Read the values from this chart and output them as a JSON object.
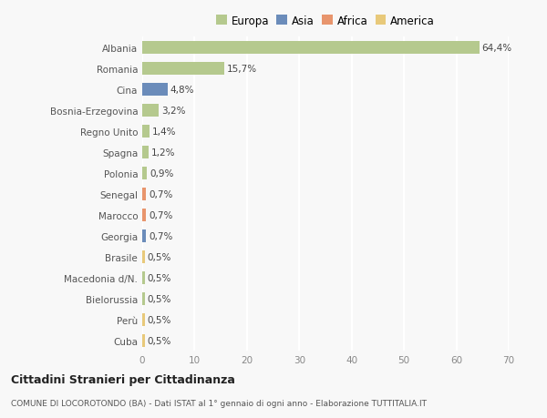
{
  "categories": [
    "Albania",
    "Romania",
    "Cina",
    "Bosnia-Erzegovina",
    "Regno Unito",
    "Spagna",
    "Polonia",
    "Senegal",
    "Marocco",
    "Georgia",
    "Brasile",
    "Macedonia d/N.",
    "Bielorussia",
    "Perù",
    "Cuba"
  ],
  "values": [
    64.4,
    15.7,
    4.8,
    3.2,
    1.4,
    1.2,
    0.9,
    0.7,
    0.7,
    0.7,
    0.5,
    0.5,
    0.5,
    0.5,
    0.5
  ],
  "labels": [
    "64,4%",
    "15,7%",
    "4,8%",
    "3,2%",
    "1,4%",
    "1,2%",
    "0,9%",
    "0,7%",
    "0,7%",
    "0,7%",
    "0,5%",
    "0,5%",
    "0,5%",
    "0,5%",
    "0,5%"
  ],
  "colors": [
    "#b5c98e",
    "#b5c98e",
    "#6b8cba",
    "#b5c98e",
    "#b5c98e",
    "#b5c98e",
    "#b5c98e",
    "#e8956d",
    "#e8956d",
    "#6b8cba",
    "#e8c97a",
    "#b5c98e",
    "#b5c98e",
    "#e8c97a",
    "#e8c97a"
  ],
  "legend": [
    {
      "label": "Europa",
      "color": "#b5c98e"
    },
    {
      "label": "Asia",
      "color": "#6b8cba"
    },
    {
      "label": "Africa",
      "color": "#e8956d"
    },
    {
      "label": "America",
      "color": "#e8c97a"
    }
  ],
  "xlim": [
    0,
    70
  ],
  "xticks": [
    0,
    10,
    20,
    30,
    40,
    50,
    60,
    70
  ],
  "title": "Cittadini Stranieri per Cittadinanza",
  "subtitle": "COMUNE DI LOCOROTONDO (BA) - Dati ISTAT al 1° gennaio di ogni anno - Elaborazione TUTTITALIA.IT",
  "background_color": "#f8f8f8",
  "grid_color": "#ffffff",
  "bar_height": 0.6,
  "label_fontsize": 7.5,
  "tick_fontsize": 7.5,
  "ytick_fontsize": 7.5
}
